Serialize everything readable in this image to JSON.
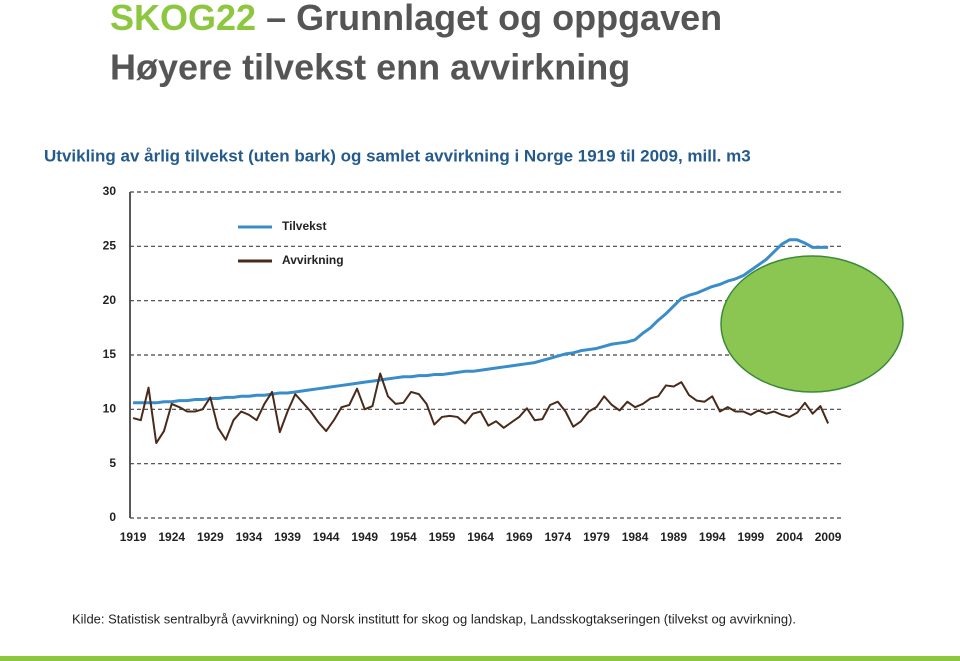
{
  "header": {
    "title_highlight": "SKOG22",
    "title_rest": "– Grunnlaget og oppgaven",
    "subtitle": "Høyere tilvekst enn avvirkning"
  },
  "chart_data": {
    "type": "line",
    "title": "Utvikling av årlig tilvekst (uten bark) og samlet avvirkning i Norge 1919 til 2009, mill. m3",
    "x": [
      1919,
      1920,
      1921,
      1922,
      1923,
      1924,
      1925,
      1926,
      1927,
      1928,
      1929,
      1930,
      1931,
      1932,
      1933,
      1934,
      1935,
      1936,
      1937,
      1938,
      1939,
      1940,
      1941,
      1942,
      1943,
      1944,
      1945,
      1946,
      1947,
      1948,
      1949,
      1950,
      1951,
      1952,
      1953,
      1954,
      1955,
      1956,
      1957,
      1958,
      1959,
      1960,
      1961,
      1962,
      1963,
      1964,
      1965,
      1966,
      1967,
      1968,
      1969,
      1970,
      1971,
      1972,
      1973,
      1974,
      1975,
      1976,
      1977,
      1978,
      1979,
      1980,
      1981,
      1982,
      1983,
      1984,
      1985,
      1986,
      1987,
      1988,
      1989,
      1990,
      1991,
      1992,
      1993,
      1994,
      1995,
      1996,
      1997,
      1998,
      1999,
      2000,
      2001,
      2002,
      2003,
      2004,
      2005,
      2006,
      2007,
      2008,
      2009
    ],
    "series": [
      {
        "name": "Tilvekst",
        "color": "#3a8dc8",
        "values": [
          10.6,
          10.6,
          10.6,
          10.6,
          10.7,
          10.7,
          10.8,
          10.8,
          10.9,
          10.9,
          11.0,
          11.0,
          11.1,
          11.1,
          11.2,
          11.2,
          11.3,
          11.3,
          11.4,
          11.5,
          11.5,
          11.6,
          11.7,
          11.8,
          11.9,
          12.0,
          12.1,
          12.2,
          12.3,
          12.4,
          12.5,
          12.6,
          12.7,
          12.8,
          12.9,
          13.0,
          13.0,
          13.1,
          13.1,
          13.2,
          13.2,
          13.3,
          13.4,
          13.5,
          13.5,
          13.6,
          13.7,
          13.8,
          13.9,
          14.0,
          14.1,
          14.2,
          14.3,
          14.5,
          14.7,
          14.9,
          15.1,
          15.2,
          15.4,
          15.5,
          15.6,
          15.8,
          16.0,
          16.1,
          16.2,
          16.4,
          17.0,
          17.5,
          18.2,
          18.8,
          19.5,
          20.2,
          20.5,
          20.7,
          21.0,
          21.3,
          21.5,
          21.8,
          22.0,
          22.3,
          22.8,
          23.3,
          23.8,
          24.5,
          25.2,
          25.6,
          25.6,
          25.3,
          24.9,
          24.9,
          24.9
        ]
      },
      {
        "name": "Avvirkning",
        "color": "#4a2a1a",
        "values": [
          9.2,
          9.0,
          12.0,
          6.9,
          8.0,
          10.5,
          10.2,
          9.8,
          9.8,
          10.0,
          11.1,
          8.3,
          7.2,
          9.0,
          9.8,
          9.5,
          9.0,
          10.5,
          11.6,
          7.9,
          9.8,
          11.4,
          10.6,
          9.8,
          8.8,
          8.0,
          9.0,
          10.2,
          10.4,
          11.9,
          10.0,
          10.3,
          13.3,
          11.2,
          10.5,
          10.6,
          11.6,
          11.4,
          10.5,
          8.6,
          9.3,
          9.4,
          9.3,
          8.7,
          9.6,
          9.8,
          8.5,
          8.9,
          8.3,
          8.8,
          9.3,
          10.1,
          9.0,
          9.1,
          10.4,
          10.7,
          9.8,
          8.4,
          8.9,
          9.8,
          10.2,
          11.2,
          10.4,
          9.9,
          10.7,
          10.2,
          10.5,
          11.0,
          11.2,
          12.2,
          12.1,
          12.5,
          11.3,
          10.8,
          10.7,
          11.2,
          9.8,
          10.2,
          9.8,
          9.8,
          9.5,
          9.9,
          9.6,
          9.8,
          9.5,
          9.3,
          9.7,
          10.6,
          9.6,
          10.3,
          8.7
        ]
      }
    ],
    "xlim": [
      1918.6,
      2010.8
    ],
    "xticks": [
      1919,
      1924,
      1929,
      1934,
      1939,
      1944,
      1949,
      1954,
      1959,
      1964,
      1969,
      1974,
      1979,
      1984,
      1989,
      1994,
      1999,
      2004,
      2009
    ],
    "ylim": [
      0,
      30
    ],
    "yticks": [
      0,
      5,
      10,
      15,
      20,
      25,
      30
    ],
    "grid": true,
    "legend": "upper left",
    "source": "Kilde: Statistisk sentralbyrå (avvirkning) og Norsk institutt for skog og landskap, Landsskogtakseringen (tilvekst og avvirkning)."
  }
}
